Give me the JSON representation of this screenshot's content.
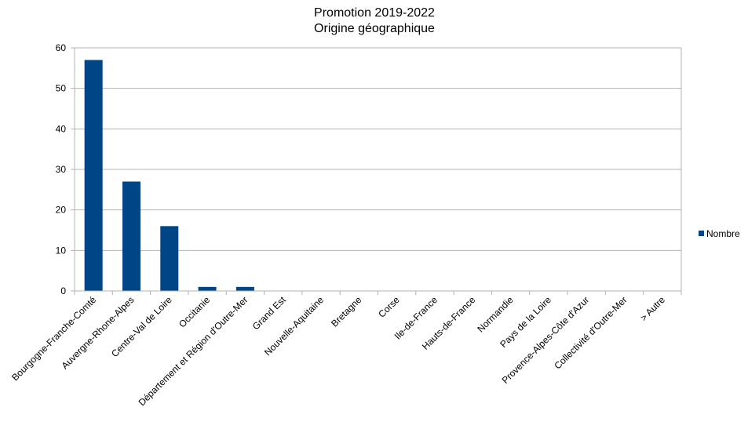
{
  "chart_data": {
    "type": "bar",
    "title": "Promotion 2019-2022",
    "subtitle": "Origine géographique",
    "categories": [
      "Bourgogne-Franche-Comté",
      "Auvergne-Rhone-Alpes",
      "Centre-Val de Loire",
      "Occitanie",
      "Département et Région d'Outre-Mer",
      "Grand Est",
      "Nouvelle-Aquitaine",
      "Bretagne",
      "Corse",
      "Ile-de-France",
      "Hauts-de-France",
      "Normandie",
      "Pays de la Loire",
      "Provence-Alpes-Côte d'Azur",
      "Collectivité d'Outre-Mer",
      "> Autre"
    ],
    "series": [
      {
        "name": "Nombre",
        "values": [
          57,
          27,
          16,
          1,
          1,
          0,
          0,
          0,
          0,
          0,
          0,
          0,
          0,
          0,
          0,
          0
        ]
      }
    ],
    "yticks": [
      "0",
      "10",
      "20",
      "30",
      "40",
      "50",
      "60"
    ],
    "ylim": [
      0,
      60
    ],
    "grid": true,
    "legend_position": "right",
    "colors": {
      "bar": "#004586",
      "grid": "#b3b3b3",
      "axis": "#b3b3b3"
    }
  }
}
